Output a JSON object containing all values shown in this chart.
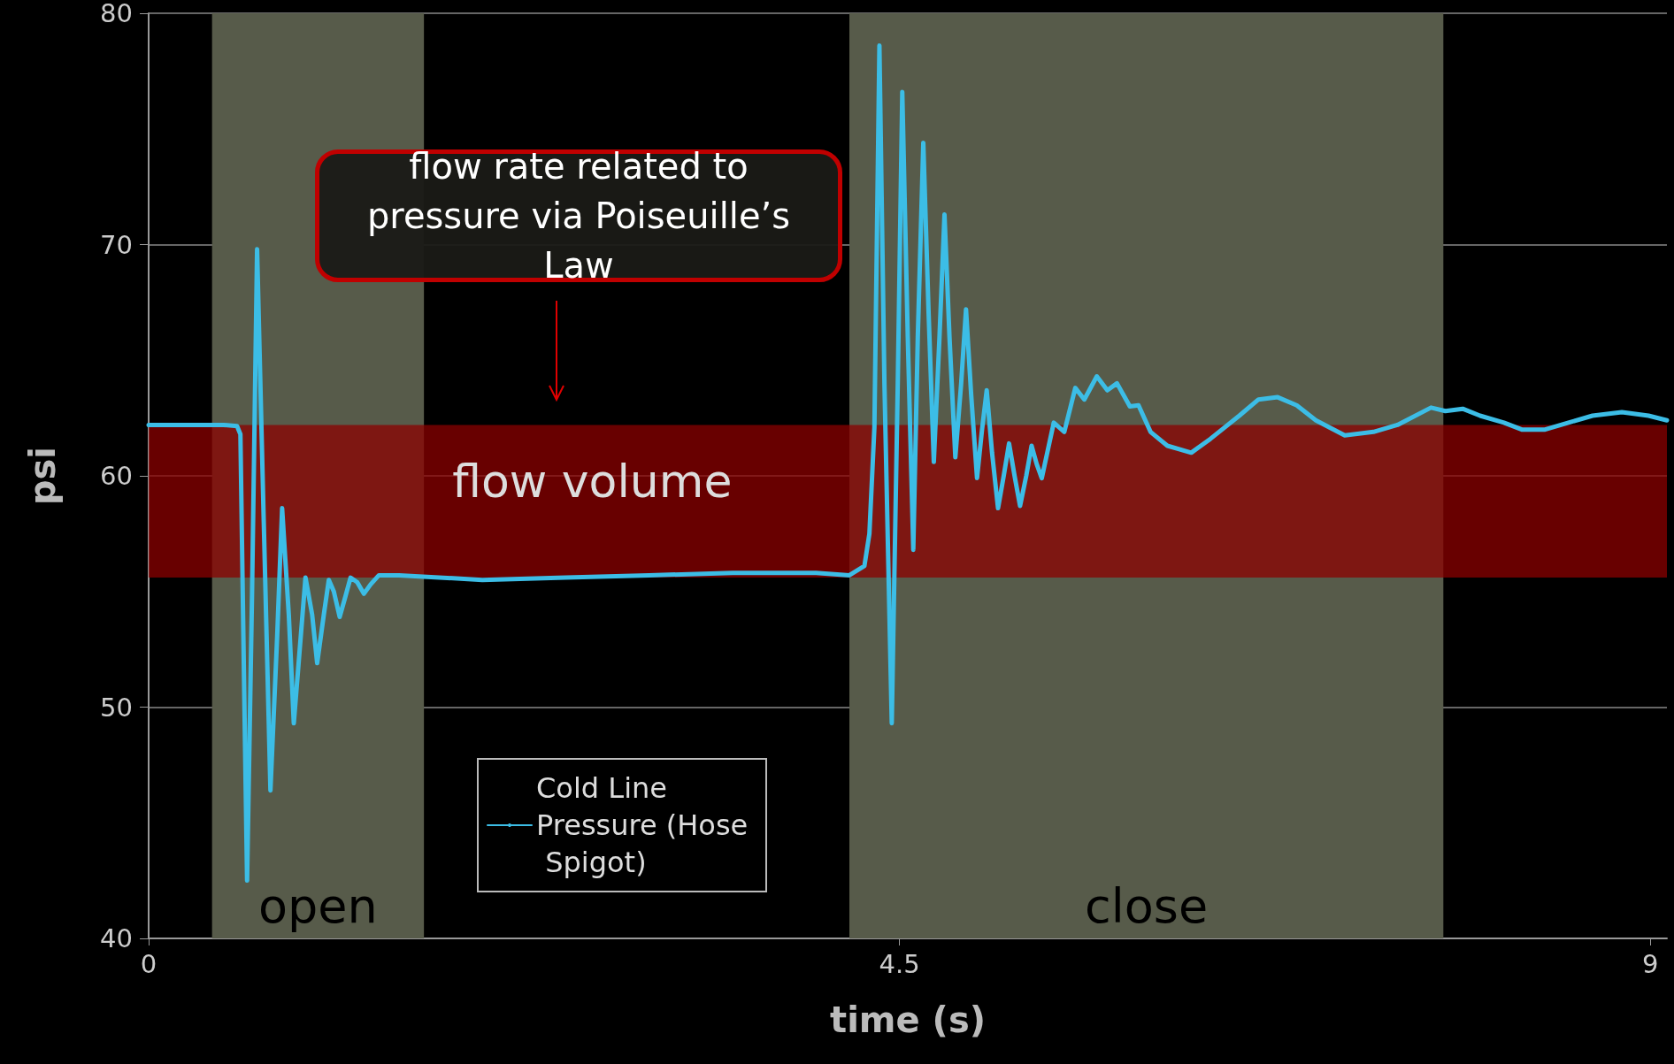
{
  "chart_data": {
    "type": "line",
    "xlabel": "time (s)",
    "ylabel": "psi",
    "xlim": [
      0,
      9.1
    ],
    "xticks": [
      0,
      4.5,
      9
    ],
    "ylim": [
      40,
      80
    ],
    "yticks": [
      40,
      50,
      60,
      70,
      80
    ],
    "grid": "y",
    "legend": "bottom",
    "marker": "none",
    "line_style": "solid",
    "annotations": [
      "flow rate related to pressure via Poiseuille’s Law"
    ],
    "bands": [
      {
        "axis": "x",
        "from": 0.38,
        "to": 1.65,
        "label": "open",
        "color": "#575b4a"
      },
      {
        "axis": "x",
        "from": 4.2,
        "to": 7.76,
        "label": "close",
        "color": "#575b4a"
      },
      {
        "axis": "y",
        "from": 55.6,
        "to": 62.2,
        "label": "flow volume",
        "color": "#8b0000"
      }
    ],
    "series": [
      {
        "name": "Cold Line Pressure (Hose Spigot)",
        "color": "#3cbde6",
        "x": [
          0,
          0.15,
          0.3,
          0.45,
          0.53,
          0.55,
          0.57,
          0.59,
          0.62,
          0.65,
          0.69,
          0.73,
          0.77,
          0.8,
          0.84,
          0.87,
          0.9,
          0.94,
          0.98,
          1.01,
          1.05,
          1.08,
          1.11,
          1.145,
          1.18,
          1.21,
          1.25,
          1.29,
          1.33,
          1.38,
          1.5,
          2.0,
          2.5,
          3.0,
          3.5,
          4.0,
          4.2,
          4.29,
          4.32,
          4.35,
          4.38,
          4.41,
          4.454,
          4.49,
          4.517,
          4.55,
          4.583,
          4.61,
          4.643,
          4.675,
          4.706,
          4.74,
          4.77,
          4.8,
          4.835,
          4.87,
          4.899,
          4.93,
          4.965,
          4.995,
          5.023,
          5.055,
          5.091,
          5.125,
          5.157,
          5.19,
          5.223,
          5.26,
          5.292,
          5.323,
          5.353,
          5.425,
          5.488,
          5.554,
          5.608,
          5.683,
          5.746,
          5.804,
          5.881,
          5.933,
          6.005,
          6.106,
          6.249,
          6.364,
          6.537,
          6.652,
          6.767,
          6.881,
          6.996,
          7.169,
          7.341,
          7.485,
          7.686,
          7.772,
          7.876,
          7.98,
          8.123,
          8.23,
          8.37,
          8.51,
          8.654,
          8.83,
          8.99,
          9.1
        ],
        "values": [
          62.2,
          62.2,
          62.2,
          62.2,
          62.15,
          61.8,
          52,
          42.5,
          55,
          69.8,
          58,
          46.4,
          53,
          58.6,
          54,
          49.3,
          52,
          55.6,
          54,
          51.9,
          54,
          55.5,
          55,
          53.9,
          54.8,
          55.6,
          55.4,
          54.9,
          55.3,
          55.7,
          55.7,
          55.5,
          55.6,
          55.7,
          55.8,
          55.8,
          55.7,
          56.1,
          57.5,
          62.1,
          78.6,
          64,
          49.3,
          64,
          76.6,
          66,
          56.8,
          66,
          74.4,
          67,
          60.6,
          66,
          71.3,
          66,
          60.8,
          64,
          67.2,
          63.5,
          59.9,
          62,
          63.7,
          61,
          58.6,
          60,
          61.4,
          60,
          58.7,
          60,
          61.3,
          60.5,
          59.9,
          62.3,
          61.9,
          63.8,
          63.3,
          64.3,
          63.7,
          64.0,
          63.0,
          63.05,
          61.9,
          61.3,
          61.0,
          61.6,
          62.6,
          63.3,
          63.4,
          63.05,
          62.4,
          61.75,
          61.9,
          62.2,
          62.95,
          62.8,
          62.9,
          62.6,
          62.3,
          62.0,
          62.0,
          62.3,
          62.6,
          62.75,
          62.6,
          62.4
        ]
      }
    ]
  }
}
